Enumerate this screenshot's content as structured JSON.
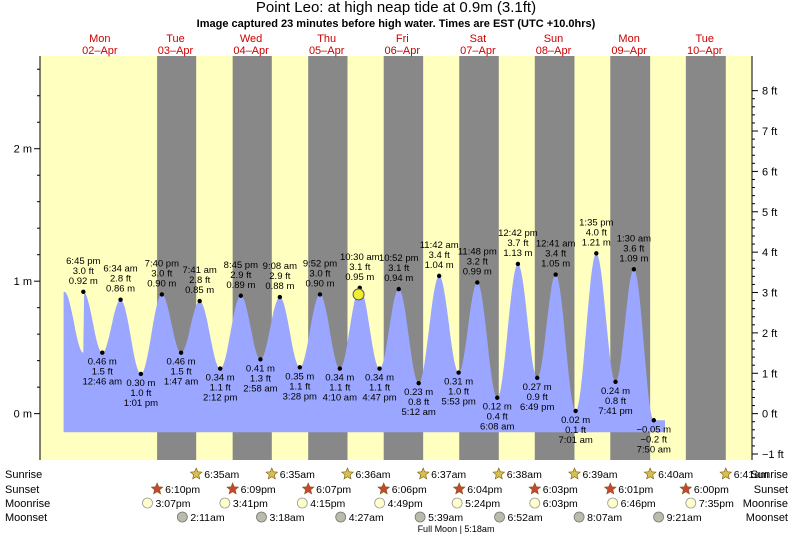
{
  "header": {
    "title": "Point Leo: at high  neap tide at 0.9m (3.1ft)",
    "subtitle": "Image captured 23 minutes before high water. Times are EST (UTC +10.0hrs)"
  },
  "chart_data": {
    "type": "area",
    "title": "Point Leo: at high  neap tide at 0.9m (3.1ft)",
    "subtitle": "Image captured 23 minutes before high water. Times are EST (UTC +10.0hrs)",
    "x_range_hours": [
      -19,
      207
    ],
    "ylim_m": [
      -0.35,
      2.7
    ],
    "days": [
      {
        "dow": "Mon",
        "date": "02–Apr"
      },
      {
        "dow": "Tue",
        "date": "03–Apr"
      },
      {
        "dow": "Wed",
        "date": "04–Apr"
      },
      {
        "dow": "Thu",
        "date": "05–Apr"
      },
      {
        "dow": "Fri",
        "date": "06–Apr"
      },
      {
        "dow": "Sat",
        "date": "07–Apr"
      },
      {
        "dow": "Sun",
        "date": "08–Apr"
      },
      {
        "dow": "Mon",
        "date": "09–Apr"
      },
      {
        "dow": "Tue",
        "date": "10–Apr"
      }
    ],
    "left_axis": {
      "unit": "m",
      "ticks": [
        {
          "v": 0,
          "label": "0 m"
        },
        {
          "v": 1,
          "label": "1 m"
        },
        {
          "v": 2,
          "label": "2 m"
        }
      ]
    },
    "right_axis": {
      "unit": "ft",
      "ticks": [
        "−1 ft",
        "0 ft",
        "1 ft",
        "2 ft",
        "3 ft",
        "4 ft",
        "5 ft",
        "6 ft",
        "7 ft",
        "8 ft"
      ]
    },
    "tides": [
      {
        "t": -5.25,
        "m": 0.92,
        "type": "high",
        "time": "6:45 pm",
        "ft": "3.0 ft",
        "mlabel": "0.92 m"
      },
      {
        "t": 0.77,
        "m": 0.46,
        "type": "low",
        "time": "12:46 am",
        "ft": "1.5 ft",
        "mlabel": "0.46 m"
      },
      {
        "t": 6.57,
        "m": 0.86,
        "type": "high",
        "time": "6:34 am",
        "ft": "2.8 ft",
        "mlabel": "0.86 m"
      },
      {
        "t": 13.02,
        "m": 0.3,
        "type": "low",
        "time": "1:01 pm",
        "ft": "1.0 ft",
        "mlabel": "0.30 m"
      },
      {
        "t": 19.67,
        "m": 0.9,
        "type": "high",
        "time": "7:40 pm",
        "ft": "3.0 ft",
        "mlabel": "0.90 m"
      },
      {
        "t": 25.78,
        "m": 0.46,
        "type": "low",
        "time": "1:47 am",
        "ft": "1.5 ft",
        "mlabel": "0.46 m"
      },
      {
        "t": 31.68,
        "m": 0.85,
        "type": "high",
        "time": "7:41 am",
        "ft": "2.8 ft",
        "mlabel": "0.85 m"
      },
      {
        "t": 38.2,
        "m": 0.34,
        "type": "low",
        "time": "2:12 pm",
        "ft": "1.1 ft",
        "mlabel": "0.34 m"
      },
      {
        "t": 44.75,
        "m": 0.89,
        "type": "high",
        "time": "8:45 pm",
        "ft": "2.9 ft",
        "mlabel": "0.89 m"
      },
      {
        "t": 50.97,
        "m": 0.41,
        "type": "low",
        "time": "2:58 am",
        "ft": "1.3 ft",
        "mlabel": "0.41 m"
      },
      {
        "t": 57.13,
        "m": 0.88,
        "type": "high",
        "time": "9:08 am",
        "ft": "2.9 ft",
        "mlabel": "0.88 m"
      },
      {
        "t": 63.47,
        "m": 0.35,
        "type": "low",
        "time": "3:28 pm",
        "ft": "1.1 ft",
        "mlabel": "0.35 m"
      },
      {
        "t": 69.87,
        "m": 0.9,
        "type": "high",
        "time": "9:52 pm",
        "ft": "3.0 ft",
        "mlabel": "0.90 m"
      },
      {
        "t": 76.17,
        "m": 0.34,
        "type": "low",
        "time": "4:10 am",
        "ft": "1.1 ft",
        "mlabel": "0.34 m"
      },
      {
        "t": 82.5,
        "m": 0.95,
        "type": "high",
        "time": "10:30 am",
        "ft": "3.1 ft",
        "mlabel": "0.95 m"
      },
      {
        "t": 88.78,
        "m": 0.34,
        "type": "low",
        "time": "4:47 pm",
        "ft": "1.1 ft",
        "mlabel": "0.34 m"
      },
      {
        "t": 94.87,
        "m": 0.94,
        "type": "high",
        "time": "10:52 pm",
        "ft": "3.1 ft",
        "mlabel": "0.94 m"
      },
      {
        "t": 101.2,
        "m": 0.23,
        "type": "low",
        "time": "5:12 am",
        "ft": "0.8 ft",
        "mlabel": "0.23 m"
      },
      {
        "t": 107.7,
        "m": 1.04,
        "type": "high",
        "time": "11:42 am",
        "ft": "3.4 ft",
        "mlabel": "1.04 m"
      },
      {
        "t": 113.88,
        "m": 0.31,
        "type": "low",
        "time": "5:53 pm",
        "ft": "1.0 ft",
        "mlabel": "0.31 m"
      },
      {
        "t": 119.8,
        "m": 0.99,
        "type": "high",
        "time": "11:48 pm",
        "ft": "3.2 ft",
        "mlabel": "0.99 m"
      },
      {
        "t": 126.13,
        "m": 0.12,
        "type": "low",
        "time": "6:08 am",
        "ft": "0.4 ft",
        "mlabel": "0.12 m"
      },
      {
        "t": 132.7,
        "m": 1.13,
        "type": "high",
        "time": "12:42 pm",
        "ft": "3.7 ft",
        "mlabel": "1.13 m"
      },
      {
        "t": 138.82,
        "m": 0.27,
        "type": "low",
        "time": "6:49 pm",
        "ft": "0.9 ft",
        "mlabel": "0.27 m"
      },
      {
        "t": 144.68,
        "m": 1.05,
        "type": "high",
        "time": "12:41 am",
        "ft": "3.4 ft",
        "mlabel": "1.05 m"
      },
      {
        "t": 151.02,
        "m": 0.02,
        "type": "low",
        "time": "7:01 am",
        "ft": "0.1 ft",
        "mlabel": "0.02 m"
      },
      {
        "t": 157.58,
        "m": 1.21,
        "type": "high",
        "time": "1:35 pm",
        "ft": "4.0 ft",
        "mlabel": "1.21 m"
      },
      {
        "t": 163.68,
        "m": 0.24,
        "type": "low",
        "time": "7:41 pm",
        "ft": "0.8 ft",
        "mlabel": "0.24 m"
      },
      {
        "t": 169.5,
        "m": 1.09,
        "type": "high",
        "time": "1:30 am",
        "ft": "3.6 ft",
        "mlabel": "1.09 m"
      },
      {
        "t": 175.83,
        "m": -0.05,
        "type": "low",
        "time": "7:50 am",
        "ft": "−0.2 ft",
        "mlabel": "−0.05 m"
      }
    ],
    "current": {
      "t": 82.12,
      "m": 0.9
    },
    "sunrise": [
      {
        "t": 30.58,
        "label": "6:35am"
      },
      {
        "t": 54.58,
        "label": "6:35am"
      },
      {
        "t": 78.6,
        "label": "6:36am"
      },
      {
        "t": 102.62,
        "label": "6:37am"
      },
      {
        "t": 126.63,
        "label": "6:38am"
      },
      {
        "t": 150.65,
        "label": "6:39am"
      },
      {
        "t": 174.67,
        "label": "6:40am"
      },
      {
        "t": 198.68,
        "label": "6:41am"
      }
    ],
    "sunset": [
      {
        "t": 18.17,
        "label": "6:10pm"
      },
      {
        "t": 42.15,
        "label": "6:09pm"
      },
      {
        "t": 66.12,
        "label": "6:07pm"
      },
      {
        "t": 90.1,
        "label": "6:06pm"
      },
      {
        "t": 114.07,
        "label": "6:04pm"
      },
      {
        "t": 138.05,
        "label": "6:03pm"
      },
      {
        "t": 162.02,
        "label": "6:01pm"
      },
      {
        "t": 186.0,
        "label": "6:00pm"
      }
    ],
    "moonrise": [
      {
        "t": 15.12,
        "label": "3:07pm"
      },
      {
        "t": 39.68,
        "label": "3:41pm"
      },
      {
        "t": 64.25,
        "label": "4:15pm"
      },
      {
        "t": 88.82,
        "label": "4:49pm"
      },
      {
        "t": 113.4,
        "label": "5:24pm"
      },
      {
        "t": 138.05,
        "label": "6:03pm"
      },
      {
        "t": 162.77,
        "label": "6:46pm"
      },
      {
        "t": 187.58,
        "label": "7:35pm"
      }
    ],
    "moonset": [
      {
        "t": 26.18,
        "label": "2:11am"
      },
      {
        "t": 51.3,
        "label": "3:18am"
      },
      {
        "t": 76.45,
        "label": "4:27am"
      },
      {
        "t": 101.65,
        "label": "5:39am"
      },
      {
        "t": 126.87,
        "label": "6:52am"
      },
      {
        "t": 152.12,
        "label": "8:07am"
      },
      {
        "t": 177.35,
        "label": "9:21am"
      }
    ],
    "row_labels": {
      "sunrise": "Sunrise",
      "sunset": "Sunset",
      "moonrise": "Moonrise",
      "moonset": "Moonset"
    },
    "full_moon": "Full Moon | 5:18am",
    "colors": {
      "day": "#ffffc0",
      "night": "#888888",
      "water": "#9aa6ff",
      "day_label": "#cc0000",
      "sun_star": "#d8c050",
      "sunset_star": "#cc4433",
      "moonrise_disc": "#ffffcc",
      "moonset_disc": "#bbbbaa",
      "current_marker": "#eeee33"
    }
  }
}
